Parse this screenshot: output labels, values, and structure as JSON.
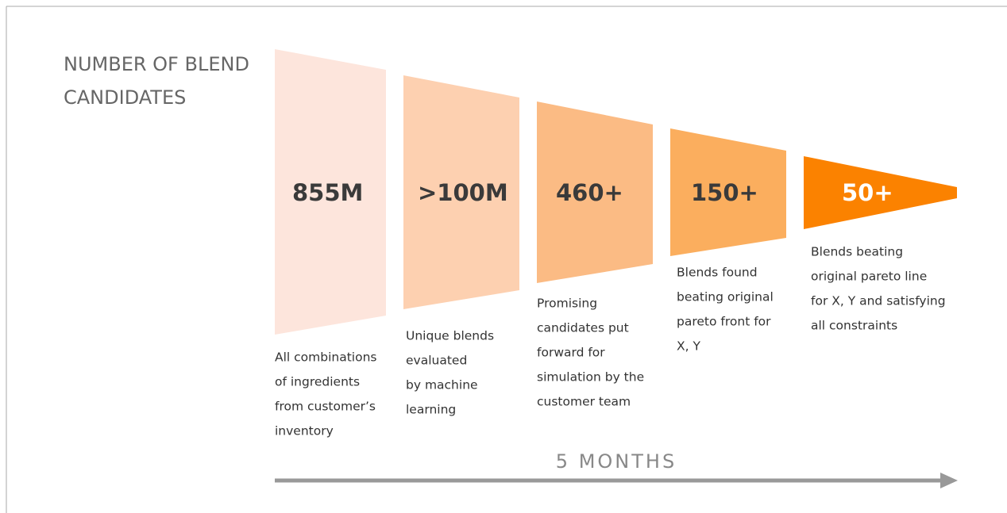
{
  "title": [
    "NUMBER OF BLEND",
    "CANDIDATES"
  ],
  "stages": [
    {
      "value": "855M",
      "description": [
        "All combinations",
        "of ingredients",
        "from customer’s",
        "inventory"
      ]
    },
    {
      "value": ">100M",
      "description": [
        "Unique blends",
        "evaluated",
        "by machine",
        "learning"
      ]
    },
    {
      "value": "460+",
      "description": [
        "Promising",
        "candidates put",
        "forward for",
        "simulation by the",
        "customer team"
      ]
    },
    {
      "value": "150+",
      "description": [
        "Blends found",
        "beating original",
        "pareto front for",
        "X, Y"
      ]
    },
    {
      "value": "50+",
      "description": [
        "Blends beating",
        "original pareto line",
        "for X, Y and satisfying",
        "all constraints"
      ]
    }
  ],
  "timeline": "5 MONTHS"
}
